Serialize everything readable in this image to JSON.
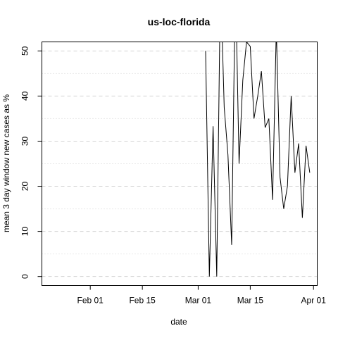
{
  "chart_data": {
    "type": "line",
    "title": "us-loc-florida",
    "xlabel": "date",
    "ylabel": "mean  3  day window new cases as %",
    "x_ticks": [
      "Feb 01",
      "Feb 15",
      "Mar 01",
      "Mar 15",
      "Apr 01"
    ],
    "x_tick_dates": [
      "2020-02-01",
      "2020-02-15",
      "2020-03-01",
      "2020-03-15",
      "2020-04-01"
    ],
    "xlim": [
      "2020-01-19",
      "2020-04-02"
    ],
    "y_ticks": [
      0,
      10,
      20,
      30,
      40,
      50
    ],
    "ylim": [
      -2,
      52
    ],
    "grid": true,
    "series": [
      {
        "color": "#000000",
        "x": [
          "2020-03-03",
          "2020-03-04",
          "2020-03-05",
          "2020-03-06",
          "2020-03-07",
          "2020-03-08",
          "2020-03-09",
          "2020-03-10",
          "2020-03-11",
          "2020-03-12",
          "2020-03-13",
          "2020-03-14",
          "2020-03-15",
          "2020-03-16",
          "2020-03-17",
          "2020-03-18",
          "2020-03-19",
          "2020-03-20",
          "2020-03-21",
          "2020-03-22",
          "2020-03-23",
          "2020-03-24",
          "2020-03-25",
          "2020-03-26",
          "2020-03-27",
          "2020-03-28",
          "2020-03-29",
          "2020-03-30",
          "2020-03-31"
        ],
        "values": [
          50,
          0,
          33.3,
          0,
          66.7,
          37.5,
          27,
          7,
          66.7,
          25,
          43.5,
          52,
          51,
          35,
          40,
          45.5,
          33,
          35,
          17,
          55,
          22,
          15,
          20,
          40,
          23,
          29.5,
          13,
          29,
          23
        ]
      }
    ]
  }
}
